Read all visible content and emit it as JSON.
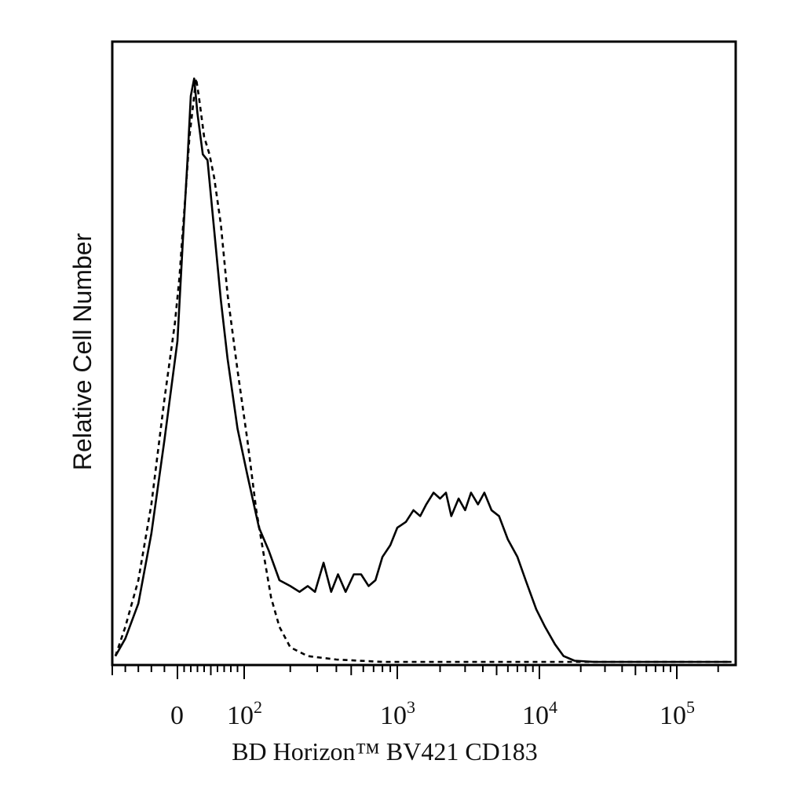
{
  "chart_data": {
    "type": "line",
    "title": "",
    "xlabel": "BD Horizon™ BV421 CD183",
    "ylabel": "Relative Cell Number",
    "x_scale": "biexponential",
    "xlim": [
      -50,
      250000
    ],
    "ylim": [
      0,
      1.0
    ],
    "grid": false,
    "x_tick_labels": [
      {
        "value": 0,
        "base": "0",
        "exp": ""
      },
      {
        "value": 100,
        "base": "10",
        "exp": "2"
      },
      {
        "value": 1000,
        "base": "10",
        "exp": "3"
      },
      {
        "value": 10000,
        "base": "10",
        "exp": "4"
      },
      {
        "value": 100000,
        "base": "10",
        "exp": "5"
      }
    ],
    "series": [
      {
        "style": "solid",
        "points": [
          [
            -50,
            0.01
          ],
          [
            -40,
            0.04
          ],
          [
            -30,
            0.1
          ],
          [
            -20,
            0.22
          ],
          [
            -10,
            0.38
          ],
          [
            0,
            0.55
          ],
          [
            8,
            0.72
          ],
          [
            15,
            0.86
          ],
          [
            20,
            0.97
          ],
          [
            25,
            1.0
          ],
          [
            30,
            0.94
          ],
          [
            38,
            0.87
          ],
          [
            45,
            0.86
          ],
          [
            55,
            0.74
          ],
          [
            65,
            0.62
          ],
          [
            75,
            0.52
          ],
          [
            90,
            0.4
          ],
          [
            105,
            0.32
          ],
          [
            125,
            0.23
          ],
          [
            145,
            0.19
          ],
          [
            170,
            0.14
          ],
          [
            200,
            0.13
          ],
          [
            230,
            0.12
          ],
          [
            260,
            0.13
          ],
          [
            290,
            0.12
          ],
          [
            330,
            0.17
          ],
          [
            370,
            0.12
          ],
          [
            410,
            0.15
          ],
          [
            460,
            0.12
          ],
          [
            520,
            0.15
          ],
          [
            580,
            0.15
          ],
          [
            650,
            0.13
          ],
          [
            720,
            0.14
          ],
          [
            800,
            0.18
          ],
          [
            900,
            0.2
          ],
          [
            1000,
            0.23
          ],
          [
            1150,
            0.24
          ],
          [
            1300,
            0.26
          ],
          [
            1450,
            0.25
          ],
          [
            1600,
            0.27
          ],
          [
            1800,
            0.29
          ],
          [
            2000,
            0.28
          ],
          [
            2200,
            0.29
          ],
          [
            2400,
            0.25
          ],
          [
            2700,
            0.28
          ],
          [
            3000,
            0.26
          ],
          [
            3300,
            0.29
          ],
          [
            3700,
            0.27
          ],
          [
            4100,
            0.29
          ],
          [
            4600,
            0.26
          ],
          [
            5200,
            0.25
          ],
          [
            6000,
            0.21
          ],
          [
            7000,
            0.18
          ],
          [
            8000,
            0.14
          ],
          [
            9500,
            0.09
          ],
          [
            11000,
            0.06
          ],
          [
            13000,
            0.03
          ],
          [
            15000,
            0.01
          ],
          [
            18000,
            0.002
          ],
          [
            25000,
            0.0
          ],
          [
            250000,
            0.0
          ]
        ]
      },
      {
        "style": "dashed",
        "points": [
          [
            -50,
            0.01
          ],
          [
            -40,
            0.06
          ],
          [
            -30,
            0.14
          ],
          [
            -20,
            0.27
          ],
          [
            -10,
            0.45
          ],
          [
            -2,
            0.58
          ],
          [
            3,
            0.66
          ],
          [
            8,
            0.74
          ],
          [
            12,
            0.8
          ],
          [
            18,
            0.9
          ],
          [
            24,
            0.96
          ],
          [
            28,
            1.0
          ],
          [
            32,
            0.97
          ],
          [
            40,
            0.9
          ],
          [
            48,
            0.87
          ],
          [
            55,
            0.83
          ],
          [
            65,
            0.75
          ],
          [
            75,
            0.63
          ],
          [
            90,
            0.5
          ],
          [
            105,
            0.38
          ],
          [
            120,
            0.26
          ],
          [
            135,
            0.18
          ],
          [
            150,
            0.11
          ],
          [
            170,
            0.06
          ],
          [
            200,
            0.025
          ],
          [
            260,
            0.01
          ],
          [
            400,
            0.004
          ],
          [
            800,
            0.0
          ],
          [
            250000,
            0.0
          ]
        ]
      }
    ]
  }
}
